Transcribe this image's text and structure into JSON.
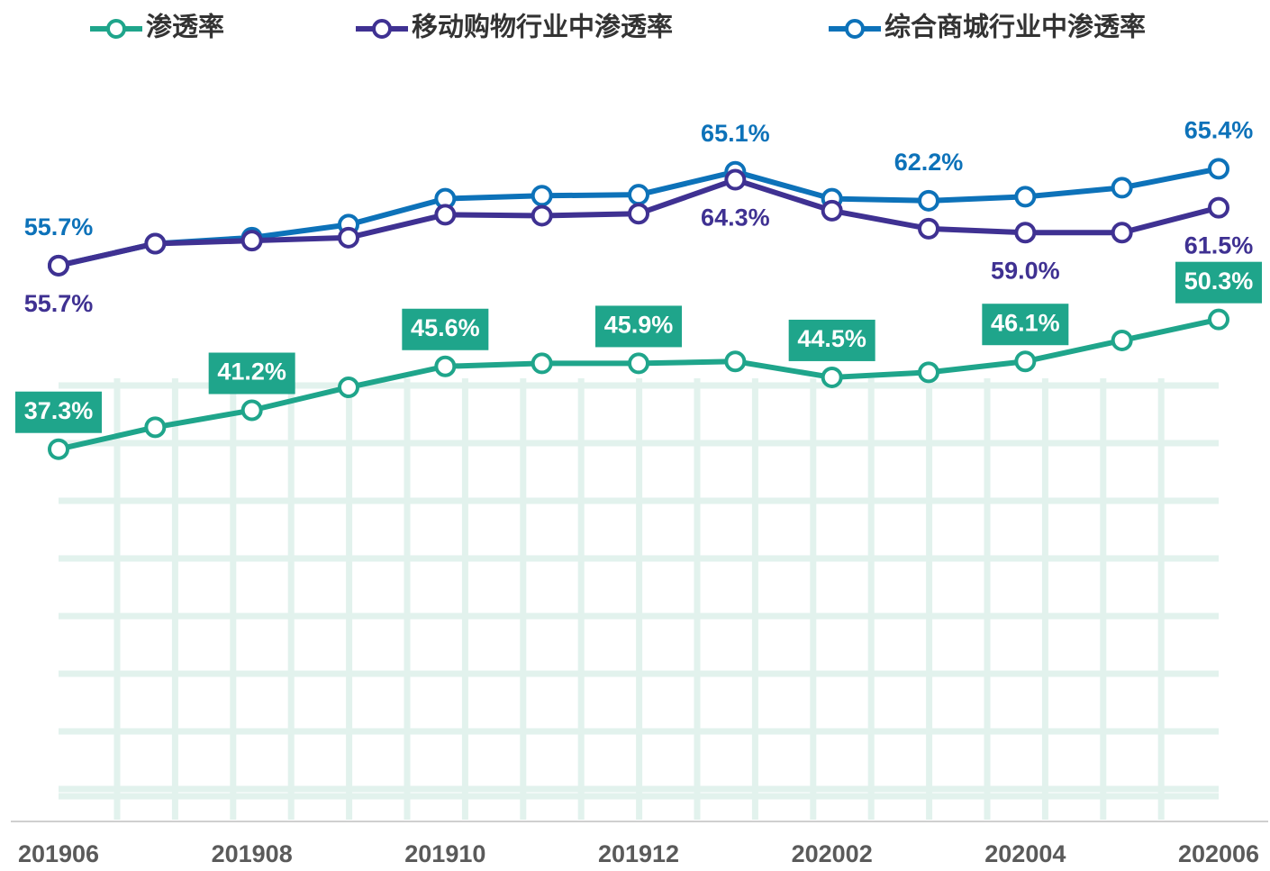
{
  "chart_data": {
    "type": "line",
    "categories": [
      "201906",
      null,
      "201908",
      null,
      "201910",
      null,
      "201912",
      null,
      "202002",
      null,
      "202004",
      null,
      "202006"
    ],
    "series": [
      {
        "name": "渗透率",
        "color": "#1fa58b",
        "values": [
          37.3,
          39.5,
          41.2,
          43.5,
          45.6,
          45.9,
          45.9,
          46.1,
          44.5,
          45.0,
          46.1,
          48.2,
          50.3
        ],
        "value_labels": [
          "37.3%",
          null,
          "41.2%",
          null,
          "45.6%",
          null,
          "45.9%",
          null,
          "44.5%",
          null,
          "46.1%",
          null,
          "50.3%"
        ]
      },
      {
        "name": "移动购物行业中渗透率",
        "color": "#3f3192",
        "values": [
          55.7,
          57.9,
          58.2,
          58.5,
          60.8,
          60.7,
          60.9,
          64.3,
          61.2,
          59.4,
          59.0,
          59.0,
          61.5
        ],
        "value_labels": [
          "55.7%",
          null,
          null,
          null,
          null,
          null,
          null,
          "64.3%",
          null,
          null,
          "59.0%",
          null,
          "61.5%"
        ]
      },
      {
        "name": "综合商城行业中渗透率",
        "color": "#0d72b9",
        "values": [
          55.7,
          57.9,
          58.5,
          59.8,
          62.4,
          62.7,
          62.8,
          65.1,
          62.4,
          62.2,
          62.6,
          63.5,
          65.4
        ],
        "value_labels": [
          "55.7%",
          null,
          null,
          null,
          null,
          null,
          null,
          "65.1%",
          null,
          "62.2%",
          null,
          null,
          "65.4%"
        ]
      }
    ],
    "ylim": [
      0,
      80
    ]
  }
}
